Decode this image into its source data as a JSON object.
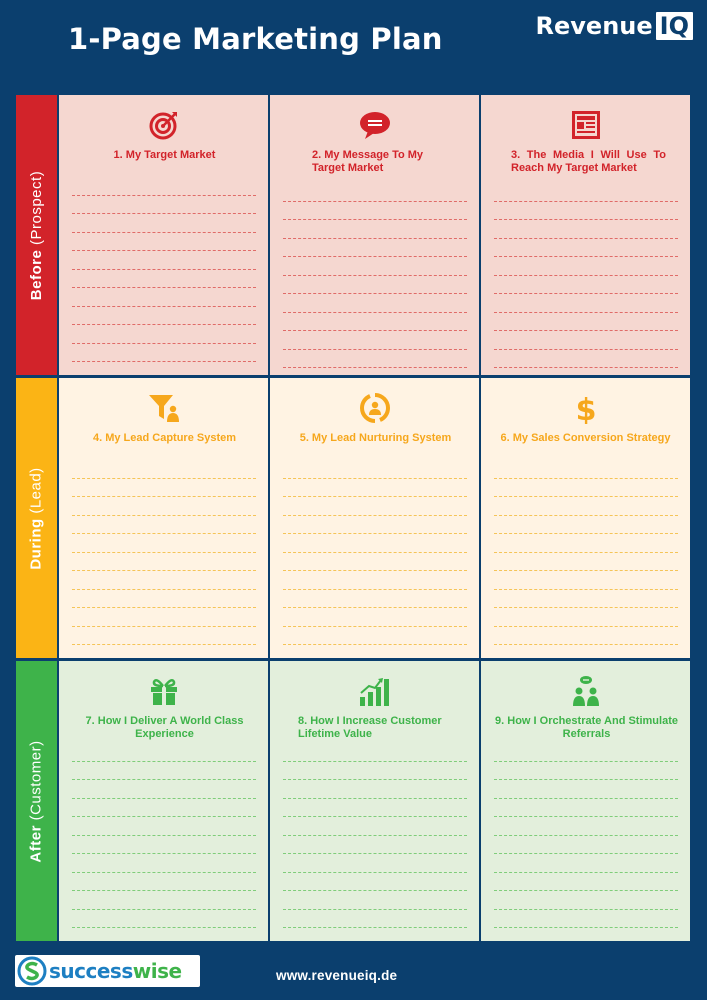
{
  "header": {
    "title": "1-Page Marketing Plan",
    "brand_main": "Revenue",
    "brand_badge": "IQ"
  },
  "rows": [
    {
      "label_bold": "Before",
      "label_light": "(Prospect)",
      "color": "#d2232a",
      "cells": [
        {
          "icon": "target-icon",
          "title": "1. My Target Market"
        },
        {
          "icon": "message-bubble-icon",
          "title": "2. My Message To My Target Market"
        },
        {
          "icon": "newspaper-icon",
          "title": "3. The Media I Will Use To Reach My Target Market"
        }
      ]
    },
    {
      "label_bold": "During",
      "label_light": "(Lead)",
      "color": "#fbb415",
      "cells": [
        {
          "icon": "funnel-person-icon",
          "title": "4. My Lead Capture System"
        },
        {
          "icon": "nurture-cycle-icon",
          "title": "5. My Lead Nurturing System"
        },
        {
          "icon": "dollar-icon",
          "title": "6. My Sales Conversion Strategy"
        }
      ]
    },
    {
      "label_bold": "After",
      "label_light": "(Customer)",
      "color": "#3eb34a",
      "cells": [
        {
          "icon": "gift-icon",
          "title": "7. How I Deliver A World Class Experience"
        },
        {
          "icon": "growth-chart-icon",
          "title": "8. How I Increase Customer Lifetime Value"
        },
        {
          "icon": "referral-people-icon",
          "title": "9. How I Orchestrate And Stimulate Referrals"
        }
      ]
    }
  ],
  "footer": {
    "logo_part1": "success",
    "logo_part2": "wise",
    "url": "www.revenueiq.de"
  }
}
